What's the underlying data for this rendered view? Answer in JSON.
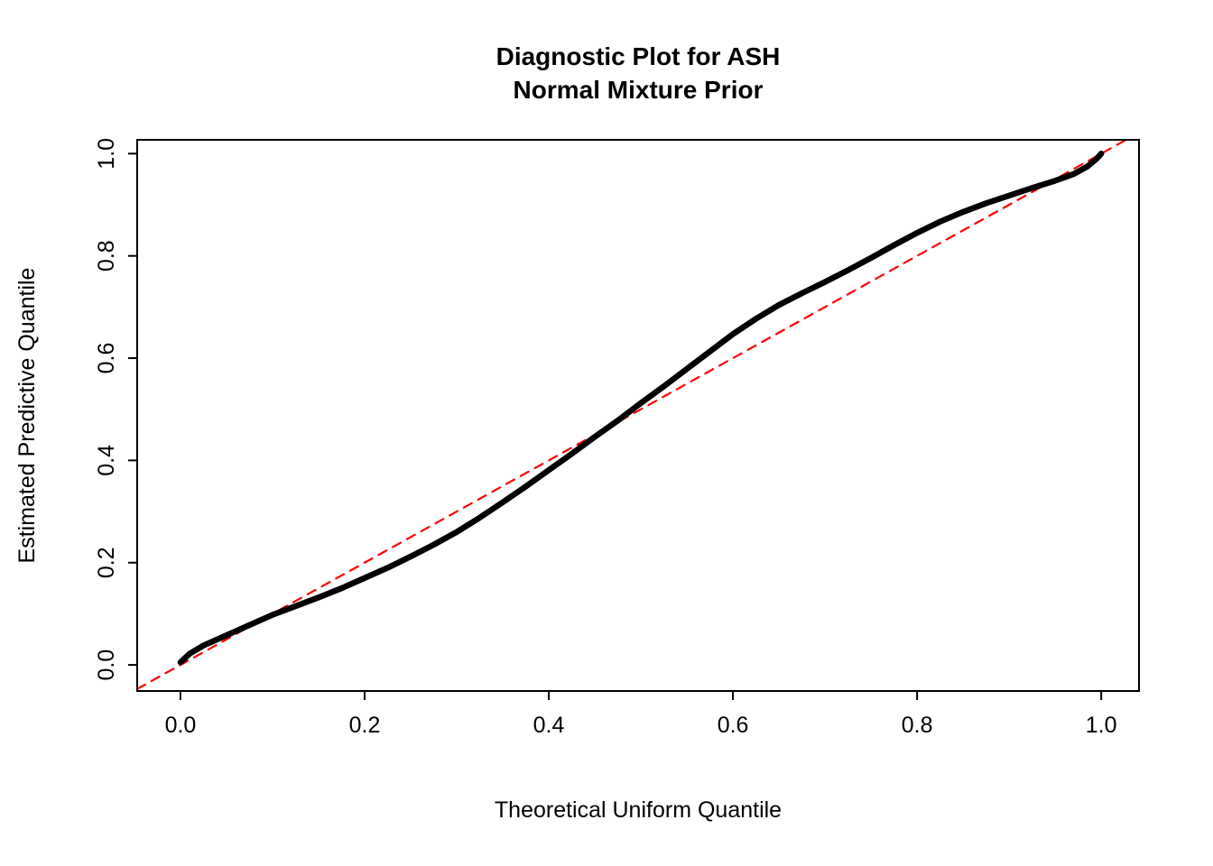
{
  "chart_data": {
    "type": "scatter",
    "title": "Diagnostic Plot for ASH",
    "subtitle": "Normal Mixture Prior",
    "xlabel": "Theoretical Uniform Quantile",
    "ylabel": "Estimated Predictive Quantile",
    "xlim": [
      -0.047,
      1.041
    ],
    "ylim": [
      -0.051,
      1.027
    ],
    "xticks": [
      0.0,
      0.2,
      0.4,
      0.6,
      0.8,
      1.0
    ],
    "yticks": [
      0.0,
      0.2,
      0.4,
      0.6,
      0.8,
      1.0
    ],
    "grid": false,
    "legend": "none",
    "colors": {
      "curve": "#000000",
      "reference": "#FF0000",
      "axis": "#000000",
      "background": "#FFFFFF"
    },
    "series": [
      {
        "name": "estimated-predictive-quantiles",
        "color": "#000000",
        "style": "thick-line",
        "x": [
          0.0,
          0.01,
          0.025,
          0.05,
          0.075,
          0.1,
          0.125,
          0.15,
          0.175,
          0.2,
          0.225,
          0.25,
          0.275,
          0.3,
          0.325,
          0.35,
          0.375,
          0.4,
          0.425,
          0.45,
          0.475,
          0.5,
          0.525,
          0.55,
          0.575,
          0.6,
          0.625,
          0.65,
          0.675,
          0.7,
          0.725,
          0.75,
          0.775,
          0.8,
          0.825,
          0.85,
          0.875,
          0.9,
          0.925,
          0.95,
          0.97,
          0.985,
          0.995,
          1.0
        ],
        "y": [
          0.005,
          0.022,
          0.038,
          0.058,
          0.078,
          0.098,
          0.115,
          0.132,
          0.15,
          0.17,
          0.19,
          0.212,
          0.235,
          0.26,
          0.288,
          0.318,
          0.349,
          0.381,
          0.413,
          0.446,
          0.478,
          0.512,
          0.545,
          0.579,
          0.613,
          0.647,
          0.677,
          0.704,
          0.727,
          0.749,
          0.772,
          0.796,
          0.821,
          0.845,
          0.867,
          0.886,
          0.903,
          0.918,
          0.933,
          0.947,
          0.96,
          0.975,
          0.99,
          1.0
        ]
      },
      {
        "name": "identity-reference-line",
        "color": "#FF0000",
        "style": "dashed",
        "x": [
          -0.047,
          1.027
        ],
        "y": [
          -0.047,
          1.027
        ]
      }
    ]
  }
}
